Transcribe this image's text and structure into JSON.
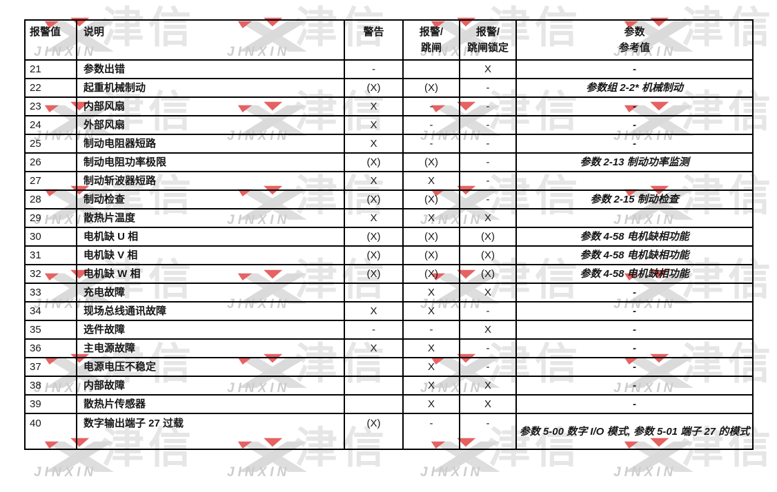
{
  "page": {
    "background": "#ffffff",
    "text_color": "#161616",
    "grid_color": "#000000"
  },
  "watermark": {
    "brand_cn": "津信",
    "brand_en": "JINXIN",
    "logo": "x-logo-icon",
    "gray_color": "#e0e0e0",
    "red_color": "#e66262"
  },
  "table": {
    "headers": [
      {
        "lines": [
          "报警值"
        ]
      },
      {
        "lines": [
          "说明"
        ]
      },
      {
        "lines": [
          "警告"
        ]
      },
      {
        "lines": [
          "报警/",
          "跳闸"
        ]
      },
      {
        "lines": [
          "报警/",
          "跳闸锁定"
        ]
      },
      {
        "lines": [
          "参数",
          "参考值"
        ]
      }
    ],
    "rows": [
      {
        "code": "21",
        "description": "参数出错",
        "warning": "-",
        "alarm_trip": "",
        "trip_lock": "X",
        "reference": "-"
      },
      {
        "code": "22",
        "description": "起重机械制动",
        "warning": "(X)",
        "alarm_trip": "(X)",
        "trip_lock": "-",
        "reference": "参数组 2-2* 机械制动"
      },
      {
        "code": "23",
        "description": "内部风扇",
        "warning": "X",
        "alarm_trip": "-",
        "trip_lock": "-",
        "reference": "-"
      },
      {
        "code": "24",
        "description": "外部风扇",
        "warning": "X",
        "alarm_trip": "-",
        "trip_lock": "-",
        "reference": "-"
      },
      {
        "code": "25",
        "description": "制动电阻器短路",
        "warning": "X",
        "alarm_trip": "-",
        "trip_lock": "-",
        "reference": "-"
      },
      {
        "code": "26",
        "description": "制动电阻功率极限",
        "warning": "(X)",
        "alarm_trip": "(X)",
        "trip_lock": "-",
        "reference": "参数 2-13 制动功率监测"
      },
      {
        "code": "27",
        "description": "制动斩波器短路",
        "warning": "X",
        "alarm_trip": "X",
        "trip_lock": "-",
        "reference": ""
      },
      {
        "code": "28",
        "description": "制动检查",
        "warning": "(X)",
        "alarm_trip": "(X)",
        "trip_lock": "-",
        "reference": "参数 2-15 制动检查"
      },
      {
        "code": "29",
        "description": "散热片温度",
        "warning": "X",
        "alarm_trip": "X",
        "trip_lock": "X",
        "reference": ""
      },
      {
        "code": "30",
        "description": "电机缺 U 相",
        "warning": "(X)",
        "alarm_trip": "(X)",
        "trip_lock": "(X)",
        "reference": "参数 4-58 电机缺相功能"
      },
      {
        "code": "31",
        "description": "电机缺 V 相",
        "warning": "(X)",
        "alarm_trip": "(X)",
        "trip_lock": "(X)",
        "reference": "参数 4-58 电机缺相功能"
      },
      {
        "code": "32",
        "description": "电机缺 W 相",
        "warning": "(X)",
        "alarm_trip": "(X)",
        "trip_lock": "(X)",
        "reference": "参数 4-58 电机缺相功能"
      },
      {
        "code": "33",
        "description": "充电故障",
        "warning": "",
        "alarm_trip": "X",
        "trip_lock": "X",
        "reference": "-"
      },
      {
        "code": "34",
        "description": "现场总线通讯故障",
        "warning": "X",
        "alarm_trip": "X",
        "trip_lock": "-",
        "reference": "-"
      },
      {
        "code": "35",
        "description": "选件故障",
        "warning": "-",
        "alarm_trip": "-",
        "trip_lock": "X",
        "reference": "-"
      },
      {
        "code": "36",
        "description": "主电源故障",
        "warning": "X",
        "alarm_trip": "X",
        "trip_lock": "-",
        "reference": "-"
      },
      {
        "code": "37",
        "description": "电源电压不稳定",
        "warning": "",
        "alarm_trip": "X",
        "trip_lock": "-",
        "reference": "-"
      },
      {
        "code": "38",
        "description": "内部故障",
        "warning": "",
        "alarm_trip": "X",
        "trip_lock": "X",
        "reference": "-"
      },
      {
        "code": "39",
        "description": "散热片传感器",
        "warning": "",
        "alarm_trip": "X",
        "trip_lock": "X",
        "reference": "-"
      },
      {
        "code": "40",
        "description": "数字输出端子 27 过载",
        "warning": "(X)",
        "alarm_trip": "-",
        "trip_lock": "-",
        "reference": "参数 5-00 数字 I/O 模式, 参数 5-01 端子 27 的模式"
      }
    ]
  }
}
